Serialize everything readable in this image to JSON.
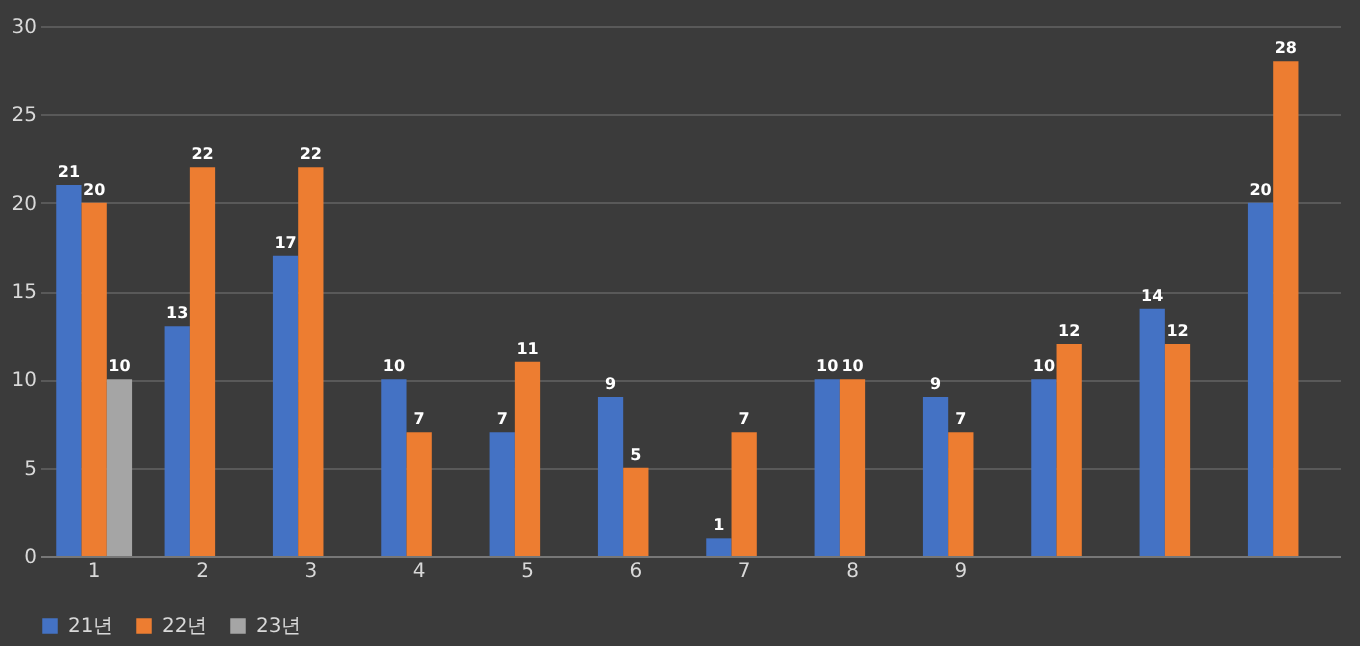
{
  "chart_data": {
    "type": "bar",
    "categories": [
      "1",
      "2",
      "3",
      "4",
      "5",
      "6",
      "7",
      "8",
      "9",
      null,
      null,
      null
    ],
    "series": [
      {
        "name": "21년",
        "color": "#4472c4",
        "values": [
          21,
          13,
          17,
          10,
          7,
          9,
          1,
          10,
          9,
          10,
          14,
          20
        ]
      },
      {
        "name": "22년",
        "color": "#ed7d31",
        "values": [
          20,
          22,
          22,
          7,
          11,
          5,
          7,
          10,
          7,
          12,
          12,
          28
        ]
      },
      {
        "name": "23년",
        "color": "#a5a5a5",
        "values": [
          10,
          null,
          null,
          null,
          null,
          null,
          null,
          null,
          null,
          null,
          null,
          null
        ]
      }
    ],
    "ylim": [
      0,
      30
    ],
    "yticks": [
      0,
      5,
      10,
      15,
      20,
      25,
      30
    ],
    "grid": "y",
    "legend": "bottom",
    "data_labels": true
  }
}
